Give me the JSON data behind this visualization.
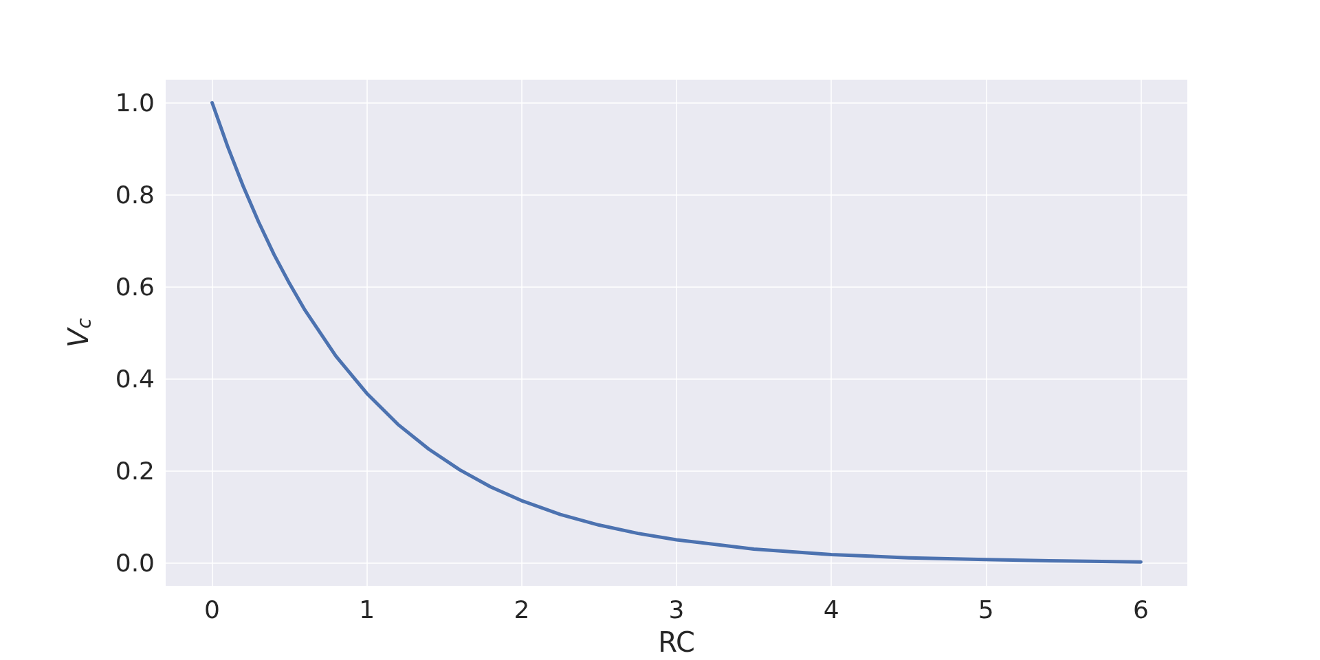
{
  "chart_data": {
    "type": "line",
    "xlabel": "RC",
    "ylabel": "V$_{c}$",
    "x": [
      0,
      0.1,
      0.2,
      0.3,
      0.4,
      0.5,
      0.6,
      0.8,
      1.0,
      1.2,
      1.4,
      1.6,
      1.8,
      2.0,
      2.25,
      2.5,
      2.75,
      3.0,
      3.5,
      4.0,
      4.5,
      5.0,
      5.5,
      6.0
    ],
    "series": [
      {
        "color": "#4c72b0",
        "values": [
          1.0,
          0.905,
          0.819,
          0.741,
          0.67,
          0.607,
          0.549,
          0.449,
          0.368,
          0.301,
          0.247,
          0.202,
          0.165,
          0.135,
          0.105,
          0.082,
          0.064,
          0.05,
          0.03,
          0.018,
          0.011,
          0.007,
          0.004,
          0.002
        ]
      }
    ],
    "xlim": [
      -0.3,
      6.3
    ],
    "xticks": [
      0,
      1,
      2,
      3,
      4,
      5,
      6
    ],
    "ylim": [
      -0.05,
      1.05
    ],
    "yticks": [
      {
        "value": 0,
        "label": "0.0"
      },
      {
        "value": 0.2,
        "label": "0.2"
      },
      {
        "value": 0.4,
        "label": "0.4"
      },
      {
        "value": 0.6,
        "label": "0.6"
      },
      {
        "value": 0.8,
        "label": "0.8"
      },
      {
        "value": 1,
        "label": "1.0"
      }
    ],
    "grid": true,
    "marker": "none",
    "line_style": "solid"
  }
}
